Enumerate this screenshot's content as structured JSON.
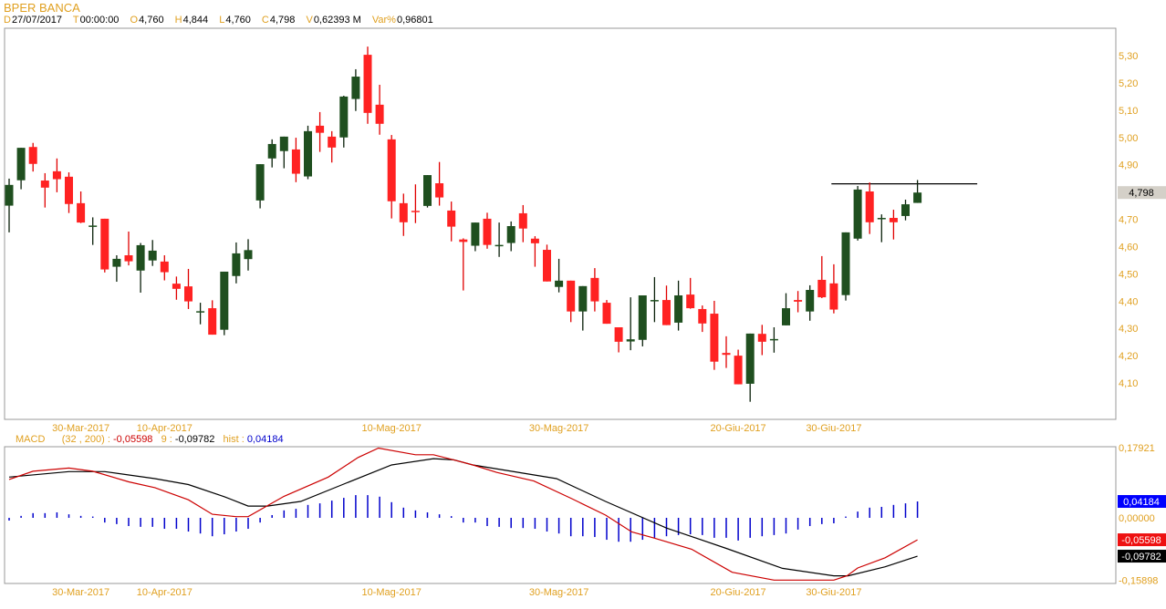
{
  "header": {
    "title": "BPER BANCA",
    "fields": [
      {
        "label": "D",
        "value": "27/07/2017"
      },
      {
        "label": "T",
        "value": "00:00:00"
      },
      {
        "label": "O",
        "value": "4,760"
      },
      {
        "label": "H",
        "value": "4,844"
      },
      {
        "label": "L",
        "value": "4,760"
      },
      {
        "label": "C",
        "value": "4,798"
      },
      {
        "label": "V",
        "value": "0,62393 M"
      },
      {
        "label": "Var%",
        "value": "0,96801"
      }
    ]
  },
  "macd_header": {
    "name": "MACD",
    "params": "(32 , 200) :",
    "macd_value": "-0,05598",
    "signal_label": "9 :",
    "signal_value": "-0,09782",
    "hist_label": "hist :",
    "hist_value": "0,04184"
  },
  "colors": {
    "up": "#1f4f1f",
    "down": "#ff2222",
    "macd": "#cc0000",
    "signal": "#000000",
    "hist": "#0000cc",
    "label": "#e0a020"
  },
  "chart_data": [
    {
      "type": "candlestick",
      "title": "BPER BANCA",
      "ylim": [
        4.02,
        5.4
      ],
      "y_ticks": [
        "5,30",
        "5,20",
        "5,10",
        "5,00",
        "4,90",
        "4,70",
        "4,60",
        "4,50",
        "4,40",
        "4,30",
        "4,20",
        "4,10"
      ],
      "y_tick_values": [
        5.3,
        5.2,
        5.1,
        5.0,
        4.9,
        4.7,
        4.6,
        4.5,
        4.4,
        4.3,
        4.2,
        4.1
      ],
      "last_price_label": "4,798",
      "last_price": 4.798,
      "x_labels": [
        {
          "index": 6,
          "label": "30-Mar-2017"
        },
        {
          "index": 13,
          "label": "10-Apr-2017"
        },
        {
          "index": 32,
          "label": "10-Mag-2017"
        },
        {
          "index": 46,
          "label": "30-Mag-2017"
        },
        {
          "index": 61,
          "label": "20-Giu-2017"
        },
        {
          "index": 69,
          "label": "30-Giu-2017"
        }
      ],
      "horizontal_line": {
        "price": 4.83,
        "from_index": 68.8,
        "to_index": 81
      },
      "ohlc": [
        [
          4.75,
          4.849,
          4.652,
          4.826
        ],
        [
          4.843,
          4.962,
          4.81,
          4.962
        ],
        [
          4.965,
          4.98,
          4.875,
          4.903
        ],
        [
          4.842,
          4.869,
          4.743,
          4.816
        ],
        [
          4.876,
          4.923,
          4.799,
          4.847
        ],
        [
          4.856,
          4.872,
          4.723,
          4.756
        ],
        [
          4.759,
          4.802,
          4.686,
          4.688
        ],
        [
          4.677,
          4.707,
          4.606,
          4.677
        ],
        [
          4.702,
          4.702,
          4.505,
          4.516
        ],
        [
          4.526,
          4.568,
          4.471,
          4.555
        ],
        [
          4.568,
          4.655,
          4.531,
          4.546
        ],
        [
          4.512,
          4.613,
          4.431,
          4.605
        ],
        [
          4.549,
          4.624,
          4.529,
          4.585
        ],
        [
          4.545,
          4.568,
          4.476,
          4.506
        ],
        [
          4.464,
          4.49,
          4.405,
          4.445
        ],
        [
          4.454,
          4.518,
          4.371,
          4.399
        ],
        [
          4.363,
          4.394,
          4.315,
          4.363
        ],
        [
          4.374,
          4.403,
          4.277,
          4.277
        ],
        [
          4.295,
          4.508,
          4.275,
          4.508
        ],
        [
          4.492,
          4.615,
          4.465,
          4.575
        ],
        [
          4.554,
          4.627,
          4.512,
          4.587
        ],
        [
          4.769,
          4.902,
          4.74,
          4.902
        ],
        [
          4.923,
          4.993,
          4.89,
          4.976
        ],
        [
          4.95,
          5.003,
          4.887,
          5.003
        ],
        [
          4.956,
          4.999,
          4.836,
          4.867
        ],
        [
          4.857,
          5.043,
          4.847,
          5.023
        ],
        [
          5.043,
          5.093,
          4.947,
          5.017
        ],
        [
          5.003,
          5.023,
          4.908,
          4.963
        ],
        [
          5.0,
          5.153,
          4.963,
          5.15
        ],
        [
          5.141,
          5.25,
          5.097,
          5.223
        ],
        [
          5.303,
          5.333,
          5.05,
          5.09
        ],
        [
          5.12,
          5.193,
          5.01,
          5.05
        ],
        [
          4.993,
          5.009,
          4.703,
          4.766
        ],
        [
          4.759,
          4.794,
          4.639,
          4.689
        ],
        [
          4.731,
          4.828,
          4.686,
          4.729
        ],
        [
          4.749,
          4.862,
          4.743,
          4.862
        ],
        [
          4.832,
          4.91,
          4.75,
          4.78
        ],
        [
          4.732,
          4.765,
          4.619,
          4.673
        ],
        [
          4.626,
          4.63,
          4.439,
          4.617
        ],
        [
          4.603,
          4.688,
          4.583,
          4.688
        ],
        [
          4.702,
          4.724,
          4.592,
          4.606
        ],
        [
          4.606,
          4.688,
          4.562,
          4.606
        ],
        [
          4.613,
          4.692,
          4.583,
          4.675
        ],
        [
          4.722,
          4.752,
          4.616,
          4.666
        ],
        [
          4.629,
          4.638,
          4.526,
          4.612
        ],
        [
          4.588,
          4.607,
          4.472,
          4.472
        ],
        [
          4.452,
          4.555,
          4.432,
          4.475
        ],
        [
          4.475,
          4.475,
          4.323,
          4.362
        ],
        [
          4.362,
          4.455,
          4.292,
          4.455
        ],
        [
          4.485,
          4.521,
          4.362,
          4.399
        ],
        [
          4.394,
          4.404,
          4.317,
          4.317
        ],
        [
          4.304,
          4.304,
          4.212,
          4.251
        ],
        [
          4.252,
          4.414,
          4.22,
          4.26
        ],
        [
          4.258,
          4.421,
          4.234,
          4.421
        ],
        [
          4.404,
          4.488,
          4.323,
          4.404
        ],
        [
          4.404,
          4.457,
          4.312,
          4.312
        ],
        [
          4.321,
          4.475,
          4.292,
          4.421
        ],
        [
          4.424,
          4.485,
          4.372,
          4.374
        ],
        [
          4.371,
          4.384,
          4.287,
          4.318
        ],
        [
          4.354,
          4.401,
          4.148,
          4.178
        ],
        [
          4.21,
          4.271,
          4.155,
          4.203
        ],
        [
          4.2,
          4.222,
          4.095,
          4.095
        ],
        [
          4.097,
          4.281,
          4.031,
          4.281
        ],
        [
          4.28,
          4.313,
          4.202,
          4.251
        ],
        [
          4.261,
          4.304,
          4.211,
          4.261
        ],
        [
          4.311,
          4.429,
          4.311,
          4.374
        ],
        [
          4.404,
          4.437,
          4.359,
          4.398
        ],
        [
          4.362,
          4.458,
          4.328,
          4.441
        ],
        [
          4.478,
          4.565,
          4.411,
          4.414
        ],
        [
          4.465,
          4.535,
          4.355,
          4.369
        ],
        [
          4.422,
          4.652,
          4.402,
          4.652
        ],
        [
          4.629,
          4.822,
          4.622,
          4.809
        ],
        [
          4.802,
          4.835,
          4.646,
          4.689
        ],
        [
          4.705,
          4.718,
          4.616,
          4.705
        ],
        [
          4.705,
          4.735,
          4.626,
          4.689
        ],
        [
          4.712,
          4.772,
          4.696,
          4.755
        ],
        [
          4.76,
          4.844,
          4.76,
          4.798
        ]
      ]
    },
    {
      "type": "line+bar",
      "title": "MACD (32 , 200)",
      "ylim": [
        -0.15898,
        0.17921
      ],
      "y_ticks": [
        "0,17921",
        "0,00000",
        "-0,15898"
      ],
      "y_tick_values": [
        0.17921,
        0.0,
        -0.15898
      ],
      "value_badges": [
        {
          "label": "0,04184",
          "value": 0.04184,
          "series": "hist"
        },
        {
          "label": "-0,05598",
          "value": -0.05598,
          "series": "macd"
        },
        {
          "label": "-0,09782",
          "value": -0.09782,
          "series": "signal"
        }
      ],
      "x_labels": [
        {
          "index": 6,
          "label": "30-Mar-2017"
        },
        {
          "index": 13,
          "label": "10-Apr-2017"
        },
        {
          "index": 32,
          "label": "10-Mag-2017"
        },
        {
          "index": 46,
          "label": "30-Mag-2017"
        },
        {
          "index": 61,
          "label": "20-Giu-2017"
        },
        {
          "index": 69,
          "label": "30-Giu-2017"
        }
      ],
      "macd": [
        [
          0,
          0.098
        ],
        [
          2,
          0.119
        ],
        [
          5,
          0.127
        ],
        [
          7,
          0.119
        ],
        [
          10,
          0.092
        ],
        [
          12.2,
          0.077
        ],
        [
          15,
          0.046
        ],
        [
          17,
          0.009
        ],
        [
          19,
          0.003
        ],
        [
          20,
          0.003
        ],
        [
          23,
          0.055
        ],
        [
          26.7,
          0.104
        ],
        [
          29.2,
          0.154
        ],
        [
          30.9,
          0.178
        ],
        [
          34,
          0.161
        ],
        [
          35.5,
          0.161
        ],
        [
          37.2,
          0.148
        ],
        [
          38.8,
          0.135
        ],
        [
          40.8,
          0.116
        ],
        [
          43.9,
          0.094
        ],
        [
          47,
          0.05
        ],
        [
          49.9,
          0.007
        ],
        [
          52.1,
          -0.036
        ],
        [
          54,
          -0.052
        ],
        [
          57.1,
          -0.08
        ],
        [
          60.5,
          -0.139
        ],
        [
          64,
          -0.159
        ],
        [
          69,
          -0.159
        ],
        [
          70.1,
          -0.148
        ],
        [
          71,
          -0.128
        ],
        [
          73.3,
          -0.102
        ],
        [
          76,
          -0.056
        ]
      ],
      "signal": [
        [
          0,
          0.104
        ],
        [
          5,
          0.118
        ],
        [
          8,
          0.118
        ],
        [
          12.2,
          0.1
        ],
        [
          15,
          0.085
        ],
        [
          18,
          0.054
        ],
        [
          20,
          0.03
        ],
        [
          21.6,
          0.03
        ],
        [
          24.4,
          0.042
        ],
        [
          27.9,
          0.085
        ],
        [
          32,
          0.135
        ],
        [
          35.5,
          0.151
        ],
        [
          37.2,
          0.148
        ],
        [
          38.8,
          0.135
        ],
        [
          45.8,
          0.1
        ],
        [
          49.9,
          0.042
        ],
        [
          55,
          -0.026
        ],
        [
          60,
          -0.078
        ],
        [
          64.7,
          -0.129
        ],
        [
          69,
          -0.148
        ],
        [
          70.2,
          -0.148
        ],
        [
          73.3,
          -0.125
        ],
        [
          76,
          -0.098
        ]
      ],
      "hist": [
        -0.007,
        0.005,
        0.012,
        0.012,
        0.014,
        0.009,
        0.005,
        0.001,
        -0.012,
        -0.016,
        -0.021,
        -0.023,
        -0.023,
        -0.028,
        -0.028,
        -0.035,
        -0.04,
        -0.047,
        -0.042,
        -0.035,
        -0.028,
        -0.012,
        0.007,
        0.019,
        0.023,
        0.033,
        0.037,
        0.044,
        0.051,
        0.058,
        0.058,
        0.054,
        0.04,
        0.026,
        0.019,
        0.014,
        0.009,
        0.002,
        -0.012,
        -0.012,
        -0.021,
        -0.023,
        -0.026,
        -0.026,
        -0.028,
        -0.035,
        -0.04,
        -0.047,
        -0.047,
        -0.049,
        -0.056,
        -0.061,
        -0.061,
        -0.056,
        -0.051,
        -0.047,
        -0.044,
        -0.042,
        -0.044,
        -0.051,
        -0.051,
        -0.058,
        -0.051,
        -0.047,
        -0.044,
        -0.04,
        -0.03,
        -0.021,
        -0.016,
        -0.014,
        0.001,
        0.016,
        0.026,
        0.028,
        0.033,
        0.037,
        0.04184
      ]
    }
  ]
}
